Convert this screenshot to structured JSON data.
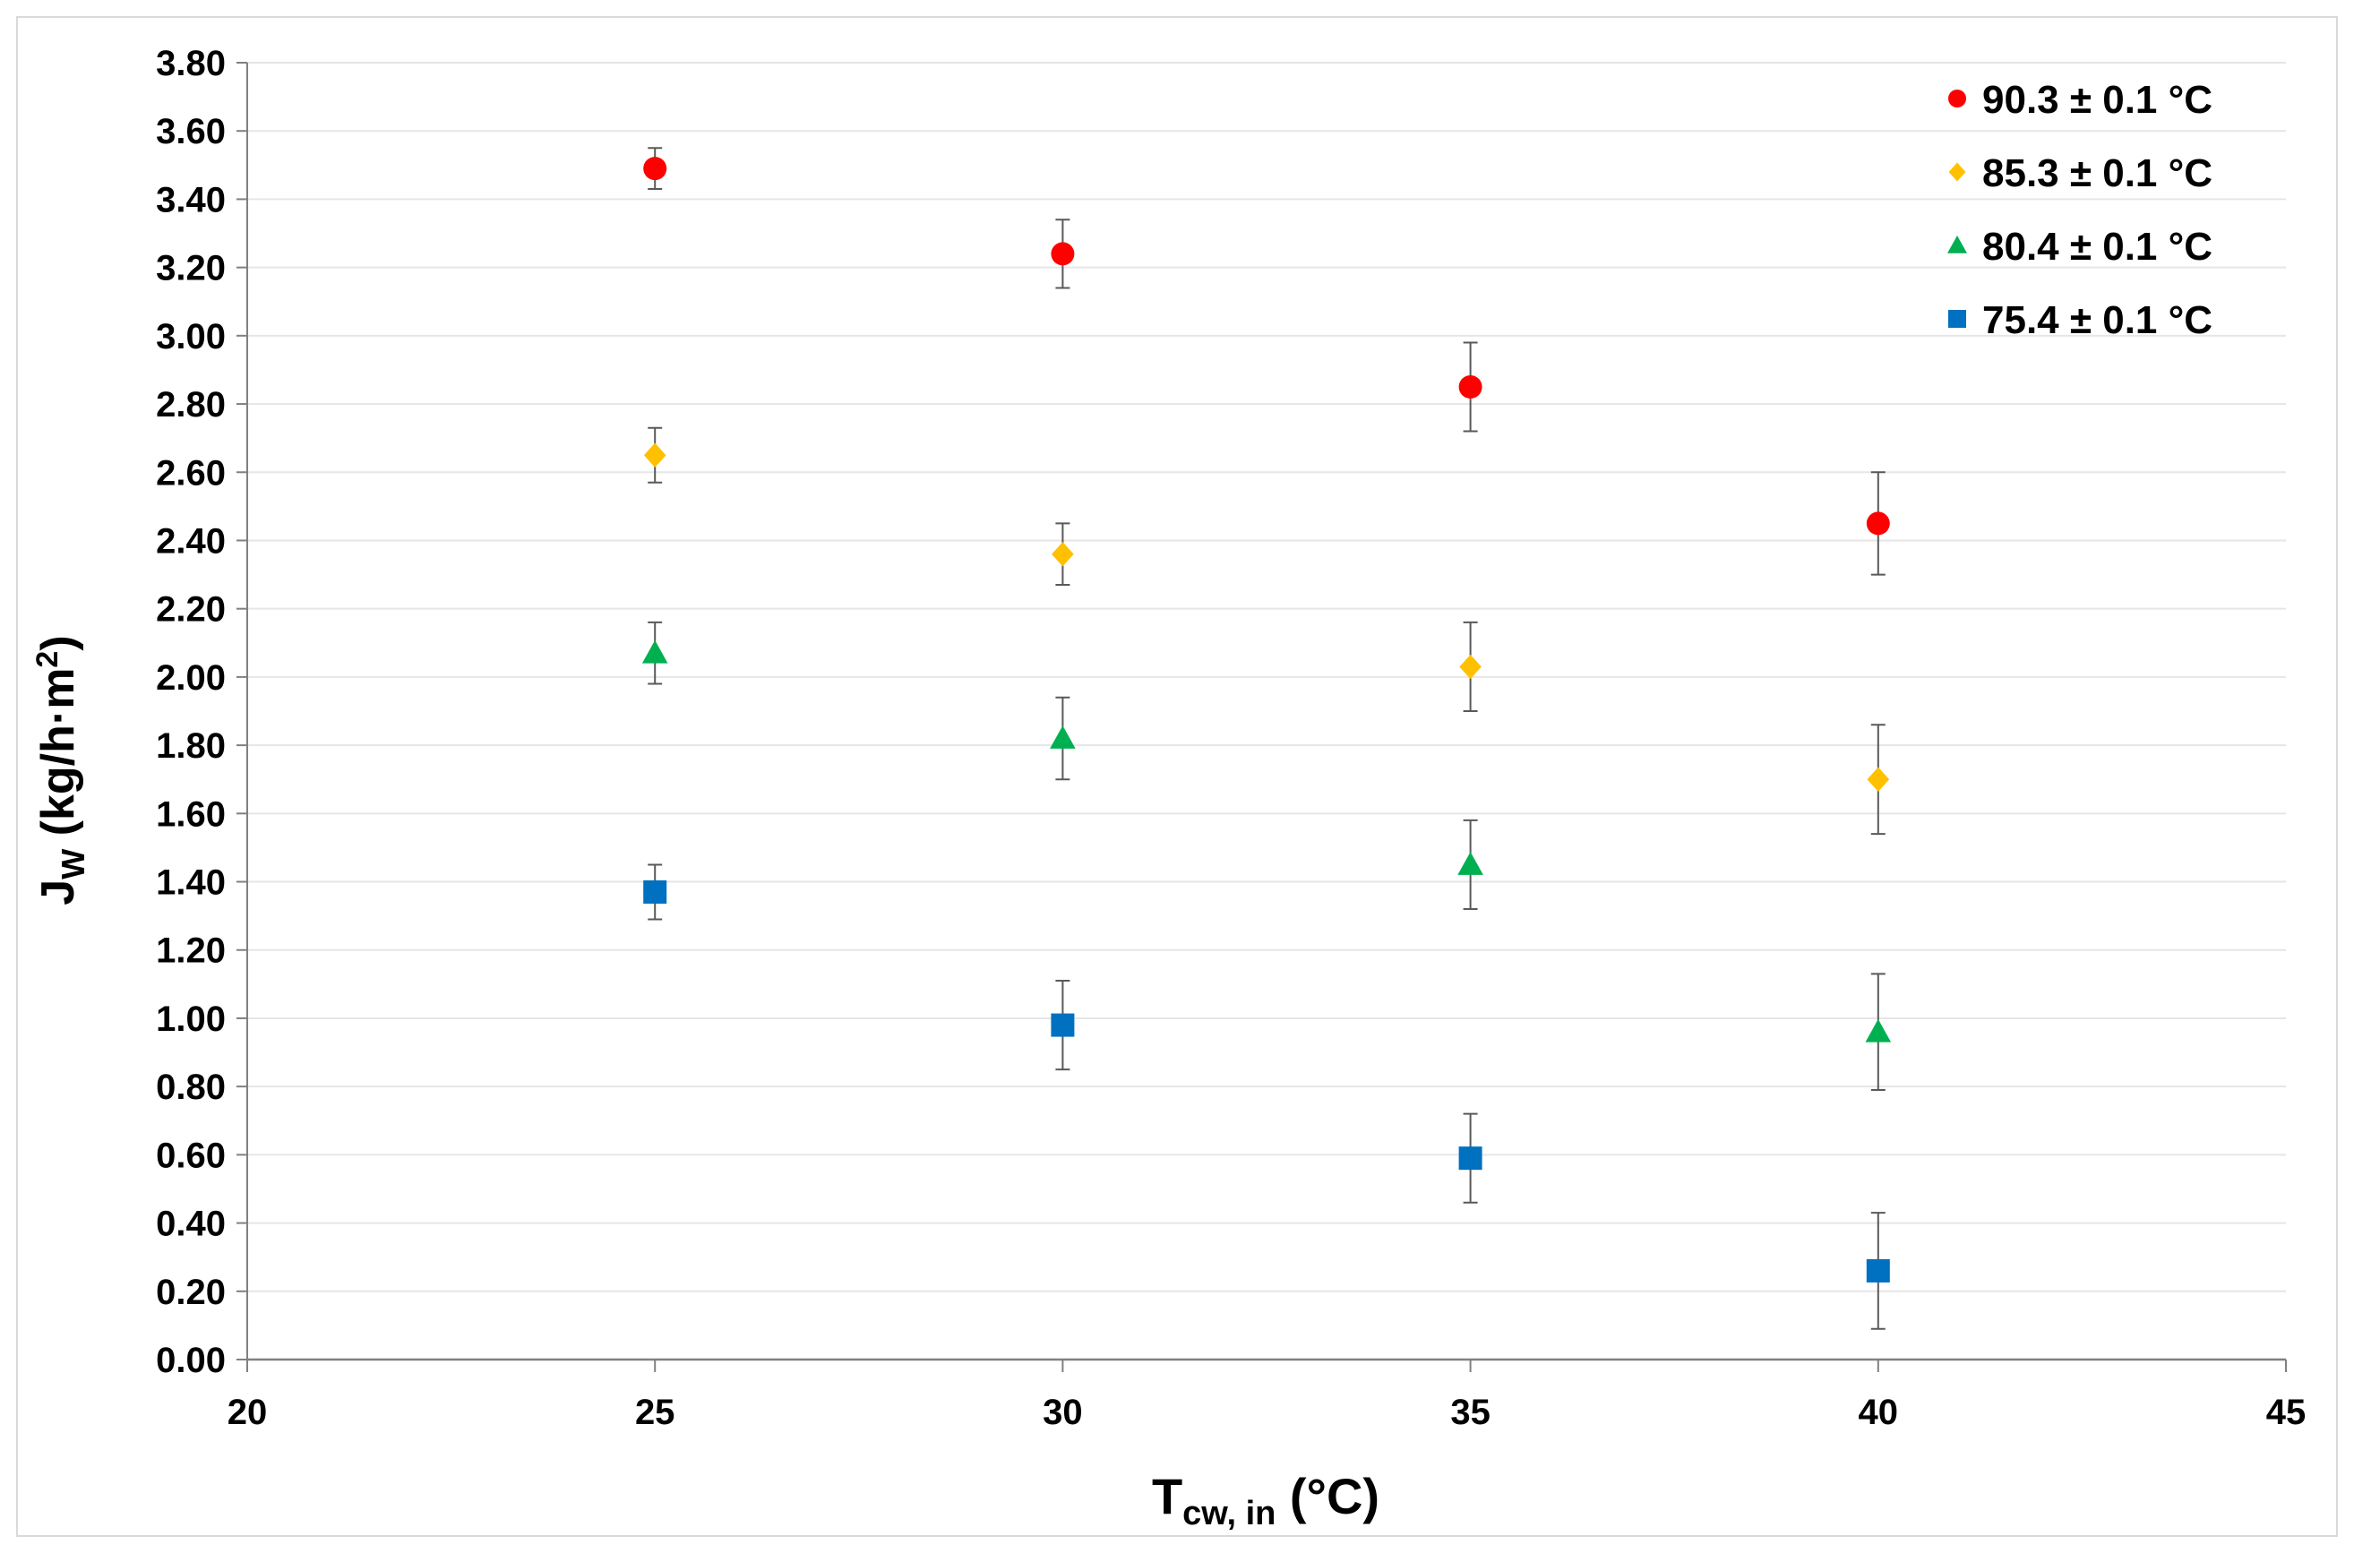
{
  "chart_data": {
    "type": "scatter",
    "title": "",
    "xlabel": {
      "main": "T",
      "sub": "cw, in",
      "suffix": " (°C)"
    },
    "ylabel": {
      "main": "J",
      "sub": "W",
      "mid": " (kg/h·m",
      "sup": "2",
      "suffix": ")"
    },
    "xlim": [
      20,
      45
    ],
    "ylim": [
      0,
      3.8
    ],
    "x_ticks": [
      "20",
      "25",
      "30",
      "35",
      "40",
      "45"
    ],
    "y_ticks": [
      "0.00",
      "0.20",
      "0.40",
      "0.60",
      "0.80",
      "1.00",
      "1.20",
      "1.40",
      "1.60",
      "1.80",
      "2.00",
      "2.20",
      "2.40",
      "2.60",
      "2.80",
      "3.00",
      "3.20",
      "3.40",
      "3.60",
      "3.80"
    ],
    "grid": "horizontal",
    "legend_position": "top-right",
    "series": [
      {
        "name": "90.3 ± 0.1 °C",
        "marker": "circle",
        "color": "#ff0000",
        "x": [
          25,
          30,
          35,
          40
        ],
        "y": [
          3.49,
          3.24,
          2.85,
          2.45
        ],
        "err": [
          0.06,
          0.1,
          0.13,
          0.15
        ]
      },
      {
        "name": "85.3 ± 0.1 °C",
        "marker": "diamond",
        "color": "#ffc000",
        "x": [
          25,
          30,
          35,
          40
        ],
        "y": [
          2.65,
          2.36,
          2.03,
          1.7
        ],
        "err": [
          0.08,
          0.09,
          0.13,
          0.16
        ]
      },
      {
        "name": "80.4 ± 0.1 °C",
        "marker": "triangle",
        "color": "#00b050",
        "x": [
          25,
          30,
          35,
          40
        ],
        "y": [
          2.07,
          1.82,
          1.45,
          0.96
        ],
        "err": [
          0.09,
          0.12,
          0.13,
          0.17
        ]
      },
      {
        "name": "75.4 ± 0.1 °C",
        "marker": "square",
        "color": "#0070c0",
        "x": [
          25,
          30,
          35,
          40
        ],
        "y": [
          1.37,
          0.98,
          0.59,
          0.26
        ],
        "err": [
          0.08,
          0.13,
          0.13,
          0.17
        ]
      }
    ]
  }
}
